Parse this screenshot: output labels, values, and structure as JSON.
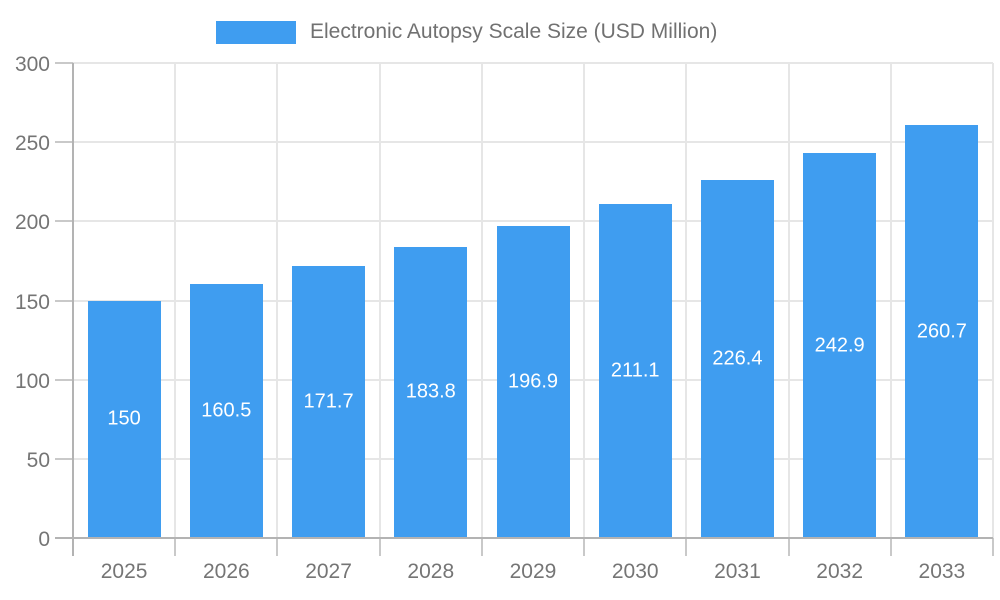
{
  "chart_data": {
    "type": "bar",
    "title": "Electronic Autopsy Scale Size (USD Million)",
    "categories": [
      "2025",
      "2026",
      "2027",
      "2028",
      "2029",
      "2030",
      "2031",
      "2032",
      "2033"
    ],
    "values": [
      150,
      160.5,
      171.7,
      183.8,
      196.9,
      211.1,
      226.4,
      242.9,
      260.7
    ],
    "data_labels": [
      "150",
      "160.5",
      "171.7",
      "183.8",
      "196.9",
      "211.1",
      "226.4",
      "242.9",
      "260.7"
    ],
    "xlabel": "",
    "ylabel": "",
    "ylim": [
      0,
      300
    ],
    "yticks": [
      0,
      50,
      100,
      150,
      200,
      250,
      300
    ],
    "grid": true,
    "legend_position": "top",
    "legend_swatch": "bar-color-swatch",
    "colors": {
      "bar": "#3F9DF0",
      "grid": "#E6E6E6",
      "axis": "#B3B3B3",
      "tick": "#C9C9C9",
      "axis_label": "#757575",
      "data_label": "#FFFFFF",
      "legend_text": "#717171",
      "background": "#FFFFFF"
    }
  }
}
